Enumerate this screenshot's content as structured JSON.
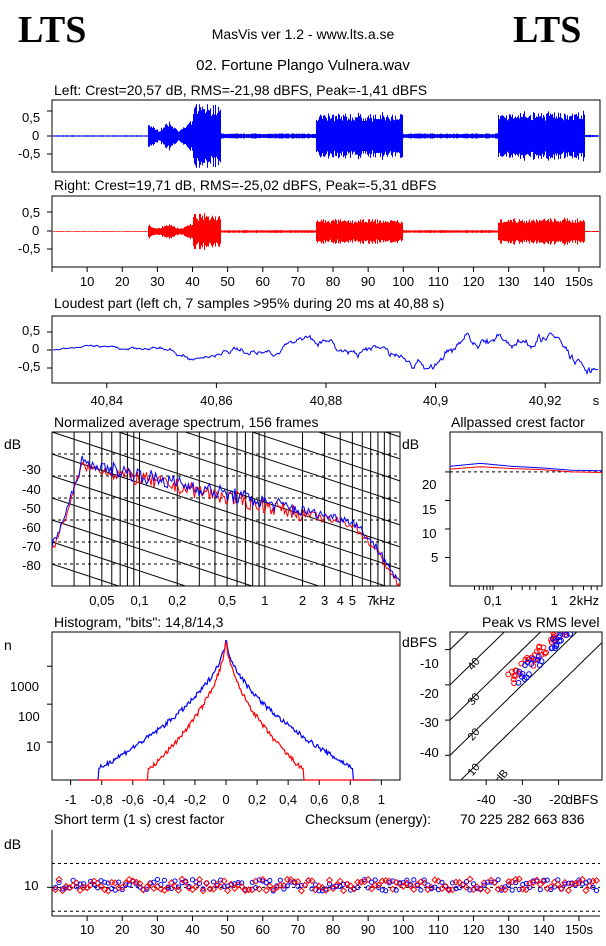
{
  "header": {
    "logo_left": "LTS",
    "logo_right": "LTS",
    "app_title": "MasVis ver 1.2 - www.lts.a.se",
    "track_title": "02. Fortune Plango Vulnera.wav"
  },
  "colors": {
    "left": "#0000ff",
    "right": "#ff0000",
    "grid": "#000000"
  },
  "chart_data": [
    {
      "type": "line",
      "title": "Left: Crest=20,57 dB, RMS=-21,98 dBFS, Peak=-1,41 dBFS",
      "yticks": [
        "0,5",
        "0",
        "-0,5"
      ],
      "ylim": [
        -1,
        1
      ],
      "duration_s": 156,
      "series": [
        {
          "values_note": "waveform",
          "color": "#0000ff"
        }
      ]
    },
    {
      "type": "line",
      "title": "Right: Crest=19,71 dB, RMS=-25,02 dBFS, Peak=-5,31 dBFS",
      "yticks": [
        "0,5",
        "0",
        "-0,5"
      ],
      "ylim": [
        -1,
        1
      ],
      "xticks": [
        "10",
        "20",
        "30",
        "40",
        "50",
        "60",
        "70",
        "80",
        "90",
        "100",
        "110",
        "120",
        "130",
        "140",
        "150s"
      ],
      "series": [
        {
          "color": "#ff0000"
        }
      ]
    },
    {
      "type": "line",
      "title": "Loudest part (left  ch, 7 samples >95% during 20 ms at 40,88 s)",
      "yticks": [
        "0,5",
        "0",
        "-0,5"
      ],
      "xticks": [
        "40,84",
        "40,86",
        "40,88",
        "40,9",
        "40,92",
        "s"
      ],
      "xlim": [
        40.83,
        40.93
      ],
      "ylim": [
        -1,
        1
      ]
    },
    {
      "type": "line",
      "title": "Normalized average spectrum, 156 frames",
      "ylabel": "dB",
      "yticks": [
        "-30",
        "-40",
        "-50",
        "-60",
        "-70",
        "-80"
      ],
      "xticks": [
        "0,05",
        "0,1",
        "0,2",
        "0,5",
        "1",
        "2",
        "3",
        "4",
        "5",
        "7",
        "kHz"
      ],
      "xscale": "log"
    },
    {
      "type": "line",
      "title": "Allpassed crest factor",
      "ylabel": "dB",
      "yticks": [
        "20",
        "15",
        "10",
        "5"
      ],
      "xticks": [
        "0,1",
        "1",
        "2",
        "kHz"
      ],
      "series": [
        {
          "color": "#0000ff",
          "values": [
            21,
            21.5,
            21,
            20.7,
            20.3,
            20.2
          ]
        },
        {
          "color": "#ff0000",
          "values": [
            20.5,
            20.9,
            20.6,
            20.4,
            20.0,
            19.9
          ]
        }
      ]
    },
    {
      "type": "line",
      "title": "Histogram, \"bits\": 14,8/14,3",
      "ylabel": "n",
      "yticks": [
        "1000",
        "100",
        "10"
      ],
      "xticks": [
        "-1",
        "-0,8",
        "-0,6",
        "-0,4",
        "-0,2",
        "0",
        "0,2",
        "0,4",
        "0,6",
        "0,8",
        "1"
      ],
      "yscale": "log"
    },
    {
      "type": "scatter",
      "title": "Peak vs RMS level",
      "ylabel": "dBFS",
      "yticks": [
        "-10",
        "-20",
        "-30",
        "-40"
      ],
      "xticks": [
        "-40",
        "-30",
        "-20",
        "dBFS"
      ],
      "line_labels": [
        "40",
        "30",
        "20",
        "10",
        "0 dB"
      ]
    },
    {
      "type": "scatter",
      "title": "Short term (1 s) crest factor",
      "ylabel": "dB",
      "yticks": [
        "10"
      ],
      "xticks": [
        "10",
        "20",
        "30",
        "40",
        "50",
        "60",
        "70",
        "80",
        "90",
        "100",
        "110",
        "120",
        "130",
        "140",
        "150s"
      ],
      "checksum_label": "Checksum (energy):",
      "checksum_value": "70 225 282 663 836"
    }
  ]
}
